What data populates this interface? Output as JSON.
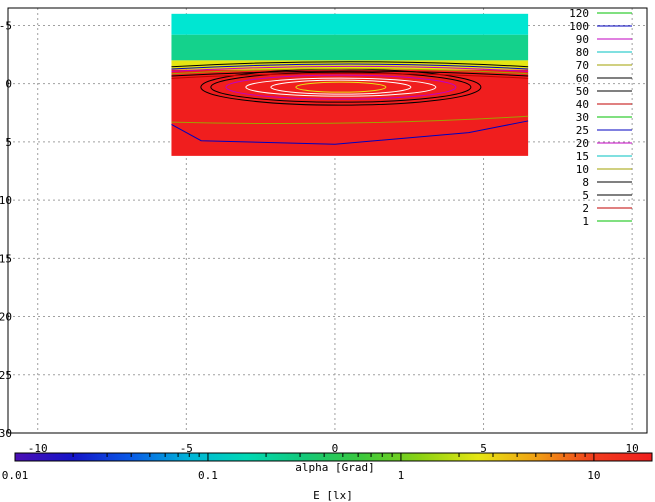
{
  "chart_data": {
    "type": "heatmap",
    "xlabel": "alpha [Grad]",
    "colorbar_label": "E [lx]",
    "x_ticks": [
      -10,
      -5,
      0,
      5,
      10
    ],
    "y_ticks": [
      -5,
      0,
      5,
      10,
      15,
      20,
      25,
      30
    ],
    "xlim": [
      -11,
      10.5
    ],
    "ylim": [
      -6.5,
      30
    ],
    "y_inverted": true,
    "grid": true,
    "heatmap_extent": {
      "x": [
        -5.5,
        6.5
      ],
      "y": [
        -6,
        6.2
      ]
    },
    "colorbar": {
      "scale": "log",
      "range": [
        0.01,
        20
      ],
      "ticks": [
        {
          "value": 0.01,
          "label": "0.01"
        },
        {
          "value": 0.1,
          "label": "0.1"
        },
        {
          "value": 1,
          "label": "1"
        },
        {
          "value": 10,
          "label": "10"
        }
      ],
      "colors": [
        "#4b0fb4",
        "#1414c8",
        "#0a5ae6",
        "#00b4d8",
        "#00d8b4",
        "#14c878",
        "#3cc83c",
        "#8cd214",
        "#e6e614",
        "#f0a014",
        "#f03c1e",
        "#f01e1e"
      ]
    },
    "legend_position": "top-right",
    "contour_levels": [
      {
        "value": "120",
        "color": "#00c000"
      },
      {
        "value": "100",
        "color": "#0000c0"
      },
      {
        "value": "90",
        "color": "#c000c0"
      },
      {
        "value": "80",
        "color": "#00c0c0"
      },
      {
        "value": "70",
        "color": "#a0a000"
      },
      {
        "value": "60",
        "color": "#000000"
      },
      {
        "value": "50",
        "color": "#000000"
      },
      {
        "value": "40",
        "color": "#c00000"
      },
      {
        "value": "30",
        "color": "#00c000"
      },
      {
        "value": "25",
        "color": "#0000c0"
      },
      {
        "value": "20",
        "color": "#c000c0"
      },
      {
        "value": "15",
        "color": "#00c0c0"
      },
      {
        "value": "10",
        "color": "#a0a000"
      },
      {
        "value": "8",
        "color": "#000000"
      },
      {
        "value": "5",
        "color": "#000000"
      },
      {
        "value": "2",
        "color": "#c00000"
      },
      {
        "value": "1",
        "color": "#00c000"
      }
    ]
  }
}
